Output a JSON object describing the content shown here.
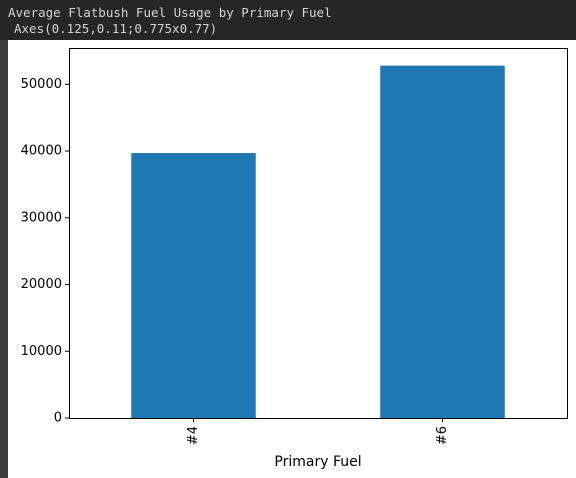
{
  "output": {
    "line1": "Average Flatbush Fuel Usage by Primary Fuel",
    "line2": "Axes(0.125,0.11;0.775x0.77)"
  },
  "colors": {
    "bar": "#1f77b4",
    "axis": "#000000",
    "background": "#ffffff"
  },
  "chart_data": {
    "type": "bar",
    "categories": [
      "#4",
      "#6"
    ],
    "values": [
      39700,
      52800
    ],
    "title": "",
    "xlabel": "Primary Fuel",
    "ylabel": "",
    "ylim": [
      0,
      55440
    ],
    "yticks": [
      0,
      10000,
      20000,
      30000,
      40000,
      50000
    ],
    "ytick_labels": [
      "0",
      "10000",
      "20000",
      "30000",
      "40000",
      "50000"
    ],
    "grid": false,
    "legend": "none"
  }
}
